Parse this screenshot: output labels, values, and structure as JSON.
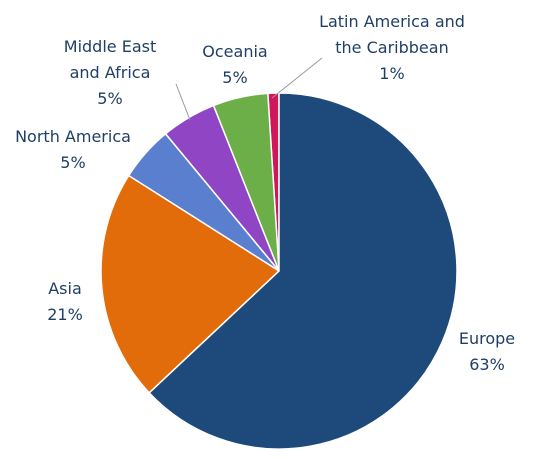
{
  "chart_data": {
    "type": "pie",
    "categories": [
      "Europe",
      "Asia",
      "North America",
      "Middle East and Africa",
      "Oceania",
      "Latin America and the Caribbean"
    ],
    "values": [
      63,
      21,
      5,
      5,
      5,
      1
    ],
    "value_labels": [
      "63%",
      "21%",
      "5%",
      "5%",
      "5%",
      "1%"
    ],
    "colors": [
      "#1d4a7a",
      "#e36c0a",
      "#5b7fcf",
      "#8f45c4",
      "#6caf48",
      "#d0175a"
    ]
  }
}
